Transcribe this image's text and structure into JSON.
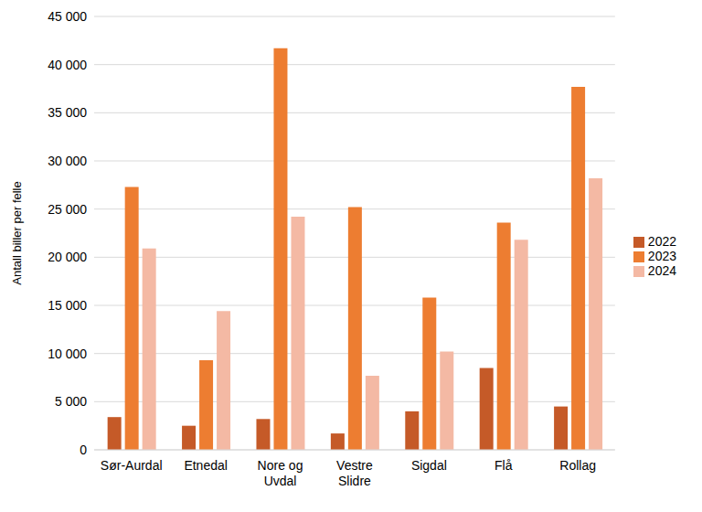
{
  "chart_data": {
    "type": "bar",
    "y_label": "Antall biller per felle",
    "categories": [
      "Sør-Aurdal",
      "Etnedal",
      "Nore og Uvdal",
      "Vestre Slidre",
      "Sigdal",
      "Flå",
      "Rollag"
    ],
    "series": [
      {
        "name": "2022",
        "color": "#c55a28",
        "values": [
          3400,
          2500,
          3200,
          1700,
          4000,
          8500,
          4500
        ]
      },
      {
        "name": "2023",
        "color": "#ed7d31",
        "values": [
          27300,
          9300,
          41700,
          25200,
          15800,
          23600,
          37700
        ]
      },
      {
        "name": "2024",
        "color": "#f4b9a4",
        "values": [
          20900,
          14400,
          24200,
          7700,
          10200,
          21800,
          28200
        ]
      }
    ],
    "ylim": [
      0,
      45000
    ],
    "yticks": [
      {
        "value": 0,
        "label": "0"
      },
      {
        "value": 5000,
        "label": "5 000"
      },
      {
        "value": 10000,
        "label": "10 000"
      },
      {
        "value": 15000,
        "label": "15 000"
      },
      {
        "value": 20000,
        "label": "20 000"
      },
      {
        "value": 25000,
        "label": "25 000"
      },
      {
        "value": 30000,
        "label": "30 000"
      },
      {
        "value": 35000,
        "label": "35 000"
      },
      {
        "value": 40000,
        "label": "40 000"
      },
      {
        "value": 45000,
        "label": "45 000"
      }
    ],
    "grid": true,
    "legend": "right"
  }
}
